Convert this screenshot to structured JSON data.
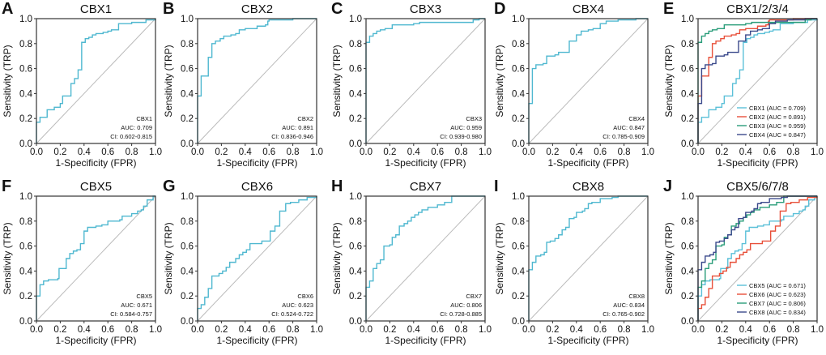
{
  "chart_data": [
    {
      "letter": "A",
      "title": "CBX1",
      "type": "line",
      "xlabel": "1-Specificity  (FPR)",
      "ylabel": "Sensitivity (TRP)",
      "xlim": [
        0,
        1
      ],
      "ylim": [
        0,
        1
      ],
      "ticks": [
        "0.0",
        "0.2",
        "0.4",
        "0.6",
        "0.8",
        "1.0"
      ],
      "annotation": [
        "CBX1",
        "AUC: 0.709",
        "CI: 0.602-0.815"
      ],
      "series": [
        "CBX1"
      ]
    },
    {
      "letter": "B",
      "title": "CBX2",
      "type": "line",
      "xlabel": "1-Specificity  (FPR)",
      "ylabel": "Sensitivity (TRP)",
      "xlim": [
        0,
        1
      ],
      "ylim": [
        0,
        1
      ],
      "ticks": [
        "0.0",
        "0.2",
        "0.4",
        "0.6",
        "0.8",
        "1.0"
      ],
      "annotation": [
        "CBX2",
        "AUC: 0.891",
        "CI: 0.836-0.946"
      ],
      "series": [
        "CBX2"
      ]
    },
    {
      "letter": "C",
      "title": "CBX3",
      "type": "line",
      "xlabel": "1-Specificity  (FPR)",
      "ylabel": "Sensitivity (TRP)",
      "xlim": [
        0,
        1
      ],
      "ylim": [
        0,
        1
      ],
      "ticks": [
        "0.0",
        "0.2",
        "0.4",
        "0.6",
        "0.8",
        "1.0"
      ],
      "annotation": [
        "CBX3",
        "AUC: 0.959",
        "CI: 0.939-0.980"
      ],
      "series": [
        "CBX3"
      ]
    },
    {
      "letter": "D",
      "title": "CBX4",
      "type": "line",
      "xlabel": "1-Specificity  (FPR)",
      "ylabel": "Sensitivity (TRP)",
      "xlim": [
        0,
        1
      ],
      "ylim": [
        0,
        1
      ],
      "ticks": [
        "0.0",
        "0.2",
        "0.4",
        "0.6",
        "0.8",
        "1.0"
      ],
      "annotation": [
        "CBX4",
        "AUC: 0.847",
        "CI: 0.785-0.909"
      ],
      "series": [
        "CBX4"
      ]
    },
    {
      "letter": "E",
      "title": "CBX1/2/3/4",
      "type": "line",
      "xlabel": "1-Specificity  (FPR)",
      "ylabel": "Sensitivity (TRP)",
      "xlim": [
        0,
        1
      ],
      "ylim": [
        0,
        1
      ],
      "ticks": [
        "0.0",
        "0.2",
        "0.4",
        "0.6",
        "0.8",
        "1.0"
      ],
      "legend": [
        "CBX1 (AUC = 0.709)",
        "CBX2 (AUC = 0.891)",
        "CBX3 (AUC = 0.959)",
        "CBX4 (AUC = 0.847)"
      ],
      "legend_position": "bottom-right",
      "series": [
        "CBX1",
        "CBX2",
        "CBX3",
        "CBX4"
      ]
    },
    {
      "letter": "F",
      "title": "CBX5",
      "type": "line",
      "xlabel": "1-Specificity  (FPR)",
      "ylabel": "Sensitivity (TRP)",
      "xlim": [
        0,
        1
      ],
      "ylim": [
        0,
        1
      ],
      "ticks": [
        "0.0",
        "0.2",
        "0.4",
        "0.6",
        "0.8",
        "1.0"
      ],
      "annotation": [
        "CBX5",
        "AUC: 0.671",
        "CI: 0.584-0.757"
      ],
      "series": [
        "CBX5"
      ]
    },
    {
      "letter": "G",
      "title": "CBX6",
      "type": "line",
      "xlabel": "1-Specificity  (FPR)",
      "ylabel": "Sensitivity (TRP)",
      "xlim": [
        0,
        1
      ],
      "ylim": [
        0,
        1
      ],
      "ticks": [
        "0.0",
        "0.2",
        "0.4",
        "0.6",
        "0.8",
        "1.0"
      ],
      "annotation": [
        "CBX6",
        "AUC: 0.623",
        "CI: 0.524-0.722"
      ],
      "series": [
        "CBX6"
      ]
    },
    {
      "letter": "H",
      "title": "CBX7",
      "type": "line",
      "xlabel": "1-Specificity  (FPR)",
      "ylabel": "Sensitivity (TRP)",
      "xlim": [
        0,
        1
      ],
      "ylim": [
        0,
        1
      ],
      "ticks": [
        "0.0",
        "0.2",
        "0.4",
        "0.6",
        "0.8",
        "1.0"
      ],
      "annotation": [
        "CBX7",
        "AUC: 0.806",
        "CI: 0.728-0.885"
      ],
      "series": [
        "CBX7"
      ]
    },
    {
      "letter": "I",
      "title": "CBX8",
      "type": "line",
      "xlabel": "1-Specificity  (FPR)",
      "ylabel": "Sensitivity (TRP)",
      "xlim": [
        0,
        1
      ],
      "ylim": [
        0,
        1
      ],
      "ticks": [
        "0.0",
        "0.2",
        "0.4",
        "0.6",
        "0.8",
        "1.0"
      ],
      "annotation": [
        "CBX8",
        "AUC: 0.834",
        "CI: 0.765-0.902"
      ],
      "series": [
        "CBX8"
      ]
    },
    {
      "letter": "J",
      "title": "CBX5/6/7/8",
      "type": "line",
      "xlabel": "1-Specificity  (FPR)",
      "ylabel": "Sensitivity (TRP)",
      "xlim": [
        0,
        1
      ],
      "ylim": [
        0,
        1
      ],
      "ticks": [
        "0.0",
        "0.2",
        "0.4",
        "0.6",
        "0.8",
        "1.0"
      ],
      "legend": [
        "CBX5 (AUC = 0.671)",
        "CBX6 (AUC = 0.623)",
        "CBX7 (AUC = 0.806)",
        "CBX8 (AUC = 0.834)"
      ],
      "legend_position": "bottom-right",
      "series": [
        "CBX5",
        "CBX6",
        "CBX7",
        "CBX8"
      ]
    }
  ],
  "single_color": "#4fb8d0",
  "combined_colors": [
    "#5bc0d8",
    "#e8503a",
    "#2a9d7a",
    "#3b4a8c"
  ],
  "diagonal_color": "#bbbbbb",
  "roc": {
    "CBX1": [
      [
        0,
        0
      ],
      [
        0,
        0.17
      ],
      [
        0.03,
        0.21
      ],
      [
        0.09,
        0.22
      ],
      [
        0.09,
        0.27
      ],
      [
        0.15,
        0.27
      ],
      [
        0.15,
        0.29
      ],
      [
        0.2,
        0.32
      ],
      [
        0.22,
        0.38
      ],
      [
        0.29,
        0.39
      ],
      [
        0.29,
        0.48
      ],
      [
        0.32,
        0.52
      ],
      [
        0.35,
        0.59
      ],
      [
        0.38,
        0.81
      ],
      [
        0.41,
        0.84
      ],
      [
        0.44,
        0.85
      ],
      [
        0.47,
        0.87
      ],
      [
        0.5,
        0.88
      ],
      [
        0.56,
        0.89
      ],
      [
        0.6,
        0.9
      ],
      [
        0.63,
        0.91
      ],
      [
        0.69,
        0.93
      ],
      [
        0.69,
        0.96
      ],
      [
        0.8,
        0.97
      ],
      [
        0.92,
        0.99
      ],
      [
        1,
        1
      ]
    ],
    "CBX2": [
      [
        0,
        0
      ],
      [
        0,
        0.38
      ],
      [
        0.03,
        0.54
      ],
      [
        0.09,
        0.54
      ],
      [
        0.09,
        0.69
      ],
      [
        0.12,
        0.69
      ],
      [
        0.12,
        0.8
      ],
      [
        0.15,
        0.82
      ],
      [
        0.19,
        0.84
      ],
      [
        0.22,
        0.86
      ],
      [
        0.28,
        0.87
      ],
      [
        0.32,
        0.88
      ],
      [
        0.35,
        0.91
      ],
      [
        0.4,
        0.92
      ],
      [
        0.5,
        0.94
      ],
      [
        0.57,
        0.95
      ],
      [
        0.59,
        0.98
      ],
      [
        0.6,
        0.99
      ],
      [
        0.8,
        1
      ],
      [
        1,
        1
      ]
    ],
    "CBX3": [
      [
        0,
        0
      ],
      [
        0,
        0.81
      ],
      [
        0.03,
        0.86
      ],
      [
        0.06,
        0.88
      ],
      [
        0.09,
        0.9
      ],
      [
        0.12,
        0.91
      ],
      [
        0.16,
        0.92
      ],
      [
        0.22,
        0.95
      ],
      [
        0.4,
        0.96
      ],
      [
        0.45,
        0.97
      ],
      [
        0.9,
        0.99
      ],
      [
        0.95,
        1
      ],
      [
        1,
        1
      ]
    ],
    "CBX4": [
      [
        0,
        0
      ],
      [
        0,
        0.32
      ],
      [
        0.03,
        0.6
      ],
      [
        0.06,
        0.63
      ],
      [
        0.12,
        0.64
      ],
      [
        0.15,
        0.7
      ],
      [
        0.22,
        0.71
      ],
      [
        0.25,
        0.73
      ],
      [
        0.34,
        0.73
      ],
      [
        0.34,
        0.82
      ],
      [
        0.4,
        0.87
      ],
      [
        0.44,
        0.9
      ],
      [
        0.5,
        0.91
      ],
      [
        0.54,
        0.92
      ],
      [
        0.6,
        0.93
      ],
      [
        0.6,
        0.96
      ],
      [
        0.65,
        0.98
      ],
      [
        0.75,
        0.99
      ],
      [
        0.9,
        1
      ],
      [
        1,
        1
      ]
    ],
    "CBX5": [
      [
        0,
        0
      ],
      [
        0,
        0.2
      ],
      [
        0.03,
        0.29
      ],
      [
        0.06,
        0.32
      ],
      [
        0.1,
        0.33
      ],
      [
        0.18,
        0.34
      ],
      [
        0.19,
        0.42
      ],
      [
        0.25,
        0.43
      ],
      [
        0.25,
        0.5
      ],
      [
        0.28,
        0.54
      ],
      [
        0.31,
        0.56
      ],
      [
        0.34,
        0.57
      ],
      [
        0.37,
        0.62
      ],
      [
        0.4,
        0.72
      ],
      [
        0.43,
        0.75
      ],
      [
        0.5,
        0.76
      ],
      [
        0.55,
        0.77
      ],
      [
        0.6,
        0.8
      ],
      [
        0.7,
        0.81
      ],
      [
        0.72,
        0.84
      ],
      [
        0.8,
        0.86
      ],
      [
        0.85,
        0.88
      ],
      [
        0.88,
        0.89
      ],
      [
        0.9,
        0.92
      ],
      [
        0.93,
        0.97
      ],
      [
        0.98,
        1
      ],
      [
        1,
        1
      ]
    ],
    "CBX6": [
      [
        0,
        0
      ],
      [
        0,
        0.1
      ],
      [
        0.03,
        0.13
      ],
      [
        0.06,
        0.19
      ],
      [
        0.09,
        0.26
      ],
      [
        0.12,
        0.36
      ],
      [
        0.18,
        0.38
      ],
      [
        0.21,
        0.4
      ],
      [
        0.24,
        0.43
      ],
      [
        0.27,
        0.47
      ],
      [
        0.32,
        0.5
      ],
      [
        0.35,
        0.53
      ],
      [
        0.38,
        0.55
      ],
      [
        0.41,
        0.57
      ],
      [
        0.44,
        0.62
      ],
      [
        0.54,
        0.64
      ],
      [
        0.61,
        0.72
      ],
      [
        0.65,
        0.76
      ],
      [
        0.69,
        0.88
      ],
      [
        0.74,
        0.94
      ],
      [
        0.78,
        0.95
      ],
      [
        0.85,
        0.97
      ],
      [
        0.92,
        0.99
      ],
      [
        1,
        1
      ]
    ],
    "CBX7": [
      [
        0,
        0
      ],
      [
        0,
        0.27
      ],
      [
        0.03,
        0.32
      ],
      [
        0.06,
        0.42
      ],
      [
        0.09,
        0.46
      ],
      [
        0.12,
        0.49
      ],
      [
        0.15,
        0.6
      ],
      [
        0.2,
        0.61
      ],
      [
        0.22,
        0.67
      ],
      [
        0.25,
        0.69
      ],
      [
        0.28,
        0.76
      ],
      [
        0.32,
        0.78
      ],
      [
        0.35,
        0.8
      ],
      [
        0.38,
        0.83
      ],
      [
        0.41,
        0.85
      ],
      [
        0.44,
        0.87
      ],
      [
        0.47,
        0.89
      ],
      [
        0.52,
        0.91
      ],
      [
        0.6,
        0.93
      ],
      [
        0.66,
        0.95
      ],
      [
        0.72,
        0.95
      ],
      [
        0.72,
        1
      ],
      [
        1,
        1
      ]
    ],
    "CBX8": [
      [
        0,
        0
      ],
      [
        0,
        0.41
      ],
      [
        0.03,
        0.47
      ],
      [
        0.06,
        0.52
      ],
      [
        0.1,
        0.53
      ],
      [
        0.13,
        0.55
      ],
      [
        0.15,
        0.63
      ],
      [
        0.18,
        0.64
      ],
      [
        0.22,
        0.66
      ],
      [
        0.25,
        0.69
      ],
      [
        0.28,
        0.73
      ],
      [
        0.31,
        0.75
      ],
      [
        0.34,
        0.82
      ],
      [
        0.38,
        0.83
      ],
      [
        0.4,
        0.87
      ],
      [
        0.45,
        0.88
      ],
      [
        0.47,
        0.9
      ],
      [
        0.5,
        0.94
      ],
      [
        0.53,
        0.95
      ],
      [
        0.6,
        0.98
      ],
      [
        0.7,
        0.99
      ],
      [
        0.75,
        1
      ],
      [
        1,
        1
      ]
    ]
  }
}
